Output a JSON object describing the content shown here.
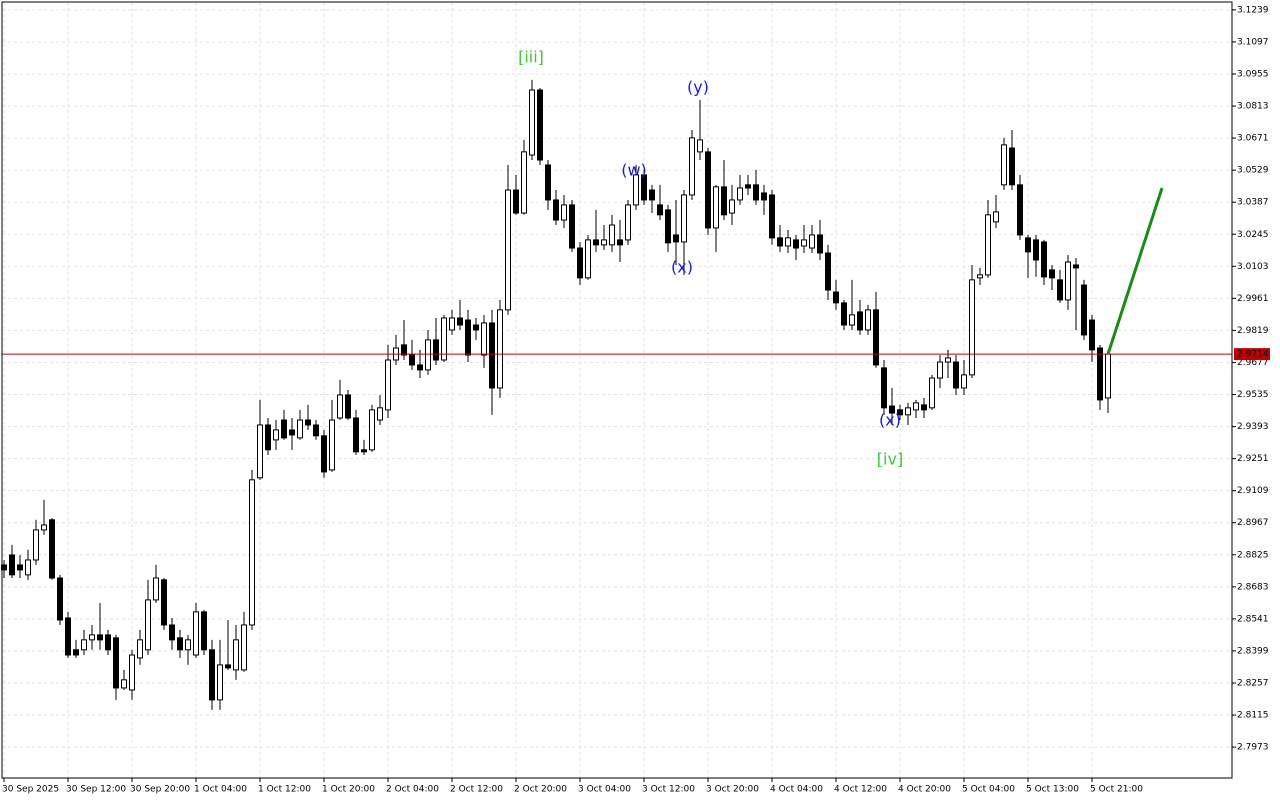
{
  "chart_data": {
    "type": "candlestick",
    "ylim": [
      2.7836,
      3.1274
    ],
    "yticks": [
      3.1239,
      3.1097,
      3.0955,
      3.0813,
      3.0671,
      3.0529,
      3.0387,
      3.0245,
      3.0103,
      2.9961,
      2.9819,
      2.9677,
      2.9535,
      2.9393,
      2.9251,
      2.9109,
      2.8967,
      2.8825,
      2.8683,
      2.8541,
      2.8399,
      2.8257,
      2.8115,
      2.7973
    ],
    "grid": true,
    "up_color": "#ffffff",
    "down_color": "#000000",
    "categories": [
      "30 Sep 2025",
      null,
      null,
      null,
      null,
      null,
      null,
      null,
      "30 Sep 12:00",
      null,
      null,
      null,
      null,
      null,
      null,
      null,
      "30 Sep 20:00",
      null,
      null,
      null,
      null,
      null,
      null,
      null,
      "1 Oct 04:00",
      null,
      null,
      null,
      null,
      null,
      null,
      null,
      "1 Oct 12:00",
      null,
      null,
      null,
      null,
      null,
      null,
      null,
      "1 Oct 20:00",
      null,
      null,
      null,
      null,
      null,
      null,
      null,
      "2 Oct 04:00",
      null,
      null,
      null,
      null,
      null,
      null,
      null,
      "2 Oct 12:00",
      null,
      null,
      null,
      null,
      null,
      null,
      null,
      "2 Oct 20:00",
      null,
      null,
      null,
      null,
      null,
      null,
      null,
      "3 Oct 04:00",
      null,
      null,
      null,
      null,
      null,
      null,
      null,
      "3 Oct 12:00",
      null,
      null,
      null,
      null,
      null,
      null,
      null,
      "3 Oct 20:00",
      null,
      null,
      null,
      null,
      null,
      null,
      null,
      "4 Oct 04:00",
      null,
      null,
      null,
      null,
      null,
      null,
      null,
      "4 Oct 12:00",
      null,
      null,
      null,
      null,
      null,
      null,
      null,
      "4 Oct 20:00",
      null,
      null,
      null,
      null,
      null,
      null,
      null,
      "5 Oct 04:00",
      null,
      null,
      null,
      null,
      null,
      null,
      null,
      "5 Oct 13:00",
      null,
      null,
      null,
      null,
      null,
      null,
      null,
      "5 Oct 21:00",
      null,
      null
    ],
    "open": [
      2.878,
      2.8824,
      2.878,
      2.8736,
      2.8802,
      2.8935,
      2.898,
      2.8722,
      2.8545,
      2.8404,
      2.8404,
      2.8448,
      2.847,
      2.847,
      2.8457,
      2.8235,
      2.8226,
      2.8368,
      2.8404,
      2.8625,
      2.8714,
      2.8514,
      2.8457,
      2.8404,
      2.8381,
      2.8572,
      2.8404,
      2.8182,
      2.8337,
      2.8315,
      2.8315,
      2.8514,
      2.9166,
      2.94,
      2.9334,
      2.9422,
      2.9378,
      2.9343,
      2.9422,
      2.94,
      2.9352,
      2.9201,
      2.9431,
      2.9533,
      2.9431,
      2.929,
      2.929,
      2.9422,
      2.9467,
      2.9688,
      2.9755,
      2.971,
      2.9666,
      2.9644,
      2.9777,
      2.9688,
      2.9821,
      2.9874,
      2.9865,
      2.9843,
      2.971,
      2.9852,
      2.9564,
      2.991,
      3.0441,
      3.0339,
      3.0596,
      3.0884,
      3.0552,
      3.0397,
      3.0308,
      3.0375,
      3.0184,
      3.0052,
      3.022,
      3.0198,
      3.0198,
      3.022,
      3.022,
      3.0375,
      3.0508,
      3.0441,
      3.0375,
      3.0353,
      3.0242,
      3.0211,
      3.0419,
      3.061,
      3.061,
      3.0273,
      3.0455,
      3.0339,
      3.0397,
      3.0464,
      3.0464,
      3.0428,
      3.0419,
      3.0229,
      3.0193,
      3.022,
      3.0193,
      3.0184,
      3.0242,
      3.0162,
      2.9989,
      2.9941,
      2.9843,
      2.9901,
      2.9821,
      2.991,
      2.9653,
      2.9484,
      2.9467,
      2.9445,
      2.9467,
      2.9489,
      2.9476,
      2.9608,
      2.9679,
      2.9679,
      2.9564,
      2.9622,
      3.0052,
      3.0065,
      3.03,
      3.0464,
      3.0627,
      3.0464,
      3.0229,
      3.022,
      3.0211,
      3.0087,
      3.0043,
      2.9954,
      3.0109,
      3.002,
      2.9865,
      2.9741,
      2.952
    ],
    "high": [
      2.8802,
      2.8869,
      2.8824,
      2.8847,
      2.898,
      2.9068,
      2.8988,
      2.8736,
      2.8572,
      2.8448,
      2.8492,
      2.8514,
      2.8612,
      2.8492,
      2.847,
      2.8315,
      2.8404,
      2.8492,
      2.8714,
      2.878,
      2.8722,
      2.8545,
      2.8492,
      2.847,
      2.8612,
      2.8581,
      2.8448,
      2.8448,
      2.8536,
      2.8514,
      2.8572,
      2.9201,
      2.9511,
      2.9431,
      2.9422,
      2.9467,
      2.9431,
      2.9467,
      2.9489,
      2.9422,
      2.9378,
      2.9511,
      2.96,
      2.9555,
      2.9467,
      2.9334,
      2.9489,
      2.9533,
      2.9755,
      2.9799,
      2.9865,
      2.9777,
      2.9733,
      2.9821,
      2.9874,
      2.9888,
      2.991,
      2.9954,
      2.991,
      2.9874,
      2.9888,
      2.991,
      2.9954,
      3.0552,
      3.0508,
      3.0663,
      3.0929,
      3.0893,
      3.0574,
      3.0441,
      3.0419,
      3.0397,
      3.0211,
      3.0242,
      3.0353,
      3.0286,
      3.0331,
      3.0308,
      3.0397,
      3.0552,
      3.053,
      3.0464,
      3.0464,
      3.0375,
      3.0397,
      3.0441,
      3.0707,
      3.084,
      3.0627,
      3.0464,
      3.0574,
      3.0464,
      3.0508,
      3.0508,
      3.053,
      3.0464,
      3.0441,
      3.0286,
      3.0264,
      3.0242,
      3.0286,
      3.0286,
      3.0308,
      3.0198,
      3.0043,
      2.9954,
      3.0043,
      2.9954,
      2.9932,
      2.9989,
      2.9688,
      2.9564,
      2.9489,
      2.9498,
      2.9511,
      2.952,
      2.9622,
      2.971,
      2.9733,
      2.971,
      2.9688,
      3.0109,
      3.0096,
      3.0397,
      3.0419,
      3.0672,
      3.0707,
      3.0508,
      3.0242,
      3.0242,
      3.022,
      3.0109,
      3.0087,
      3.0153,
      3.014,
      3.0043,
      2.9888,
      2.9755,
      2.9733
    ],
    "low": [
      2.8722,
      2.8722,
      2.8722,
      2.8714,
      2.878,
      2.8913,
      2.8714,
      2.8514,
      2.8368,
      2.8368,
      2.8381,
      2.8404,
      2.8404,
      2.8381,
      2.8182,
      2.8226,
      2.8182,
      2.8337,
      2.8381,
      2.8612,
      2.8492,
      2.8404,
      2.8368,
      2.8337,
      2.8368,
      2.8381,
      2.8138,
      2.8138,
      2.8315,
      2.8271,
      2.8306,
      2.8492,
      2.9157,
      2.9267,
      2.929,
      2.9334,
      2.929,
      2.9334,
      2.9378,
      2.9334,
      2.9166,
      2.9192,
      2.9422,
      2.9422,
      2.9267,
      2.9267,
      2.9281,
      2.94,
      2.9431,
      2.9666,
      2.9688,
      2.9644,
      2.9608,
      2.9622,
      2.9666,
      2.9679,
      2.9799,
      2.9821,
      2.9679,
      2.9777,
      2.9653,
      2.9445,
      2.952,
      2.9888,
      3.0331,
      3.0331,
      3.0574,
      3.0552,
      3.0353,
      3.0286,
      3.0273,
      3.0167,
      3.002,
      3.0043,
      3.0167,
      3.0176,
      3.0167,
      3.0122,
      3.0198,
      3.0353,
      3.0375,
      3.0339,
      3.0308,
      3.0167,
      3.0109,
      3.0065,
      3.0397,
      3.0574,
      3.0242,
      3.0167,
      3.0308,
      3.0286,
      3.0375,
      3.0419,
      3.0375,
      3.0331,
      3.0198,
      3.0167,
      3.0162,
      3.0131,
      3.0162,
      3.0162,
      3.0131,
      2.9954,
      2.991,
      2.9821,
      2.9821,
      2.9799,
      2.9799,
      2.9653,
      2.9445,
      2.94,
      2.9422,
      2.94,
      2.9431,
      2.9431,
      2.9467,
      2.9564,
      2.9608,
      2.9533,
      2.9533,
      2.9608,
      3.002,
      3.0052,
      3.0273,
      3.0441,
      3.0441,
      3.022,
      3.0052,
      3.0056,
      3.002,
      2.9998,
      2.9941,
      2.991,
      2.9821,
      2.9777,
      2.9679,
      2.9467,
      2.9453
    ],
    "close": [
      2.8758,
      2.8736,
      2.8758,
      2.8802,
      2.8935,
      2.8957,
      2.8722,
      2.8536,
      2.8381,
      2.8381,
      2.8448,
      2.847,
      2.8448,
      2.8404,
      2.8235,
      2.8271,
      2.8381,
      2.8448,
      2.8625,
      2.8722,
      2.8514,
      2.8448,
      2.8404,
      2.8448,
      2.8572,
      2.8404,
      2.8182,
      2.8337,
      2.8324,
      2.8448,
      2.8514,
      2.9157,
      2.94,
      2.929,
      2.9378,
      2.9343,
      2.9356,
      2.9422,
      2.94,
      2.9352,
      2.9192,
      2.9422,
      2.9533,
      2.9431,
      2.9281,
      2.9281,
      2.9467,
      2.9476,
      2.9688,
      2.9741,
      2.971,
      2.9666,
      2.9644,
      2.9777,
      2.9688,
      2.9874,
      2.9874,
      2.9843,
      2.971,
      2.9821,
      2.9852,
      2.9564,
      2.991,
      3.0441,
      3.0339,
      3.061,
      3.0884,
      3.0574,
      3.0397,
      3.0308,
      3.0375,
      3.0184,
      3.0052,
      3.022,
      3.0198,
      3.022,
      3.0286,
      3.0198,
      3.0375,
      3.0508,
      3.0397,
      3.0397,
      3.0331,
      3.0207,
      3.0211,
      3.0419,
      3.0672,
      3.0663,
      3.0273,
      3.0455,
      3.0331,
      3.0397,
      3.045,
      3.045,
      3.0397,
      3.0397,
      3.0229,
      3.0193,
      3.0229,
      3.0184,
      3.022,
      3.0242,
      3.0162,
      2.9998,
      2.9941,
      2.9843,
      2.9888,
      2.9821,
      2.991,
      2.9666,
      2.9476,
      2.9453,
      2.9445,
      2.9476,
      2.9498,
      2.9467,
      2.9608,
      2.9679,
      2.9697,
      2.9564,
      2.9622,
      3.0043,
      3.0065,
      3.0331,
      3.0344,
      3.0641,
      3.0464,
      3.0242,
      3.0167,
      3.0131,
      3.0056,
      3.0052,
      2.9954,
      3.0122,
      3.0096,
      2.9799,
      2.9733,
      2.9511,
      2.9714
    ],
    "current_price": {
      "value": 2.9714,
      "color": "#c00000"
    },
    "forecast": {
      "value": 3.045,
      "color": "#1a8a1a"
    },
    "annotations": [
      {
        "text": "[iii]",
        "color": "#3cc83c"
      },
      {
        "text": "(w)",
        "color": "#1c1ccc"
      },
      {
        "text": "(y)",
        "color": "#1c1ccc"
      },
      {
        "text": "(x)",
        "color": "#1c1ccc"
      },
      {
        "text": "(x)",
        "color": "#1c1ccc"
      },
      {
        "text": "[iv]",
        "color": "#3cc83c"
      }
    ]
  }
}
